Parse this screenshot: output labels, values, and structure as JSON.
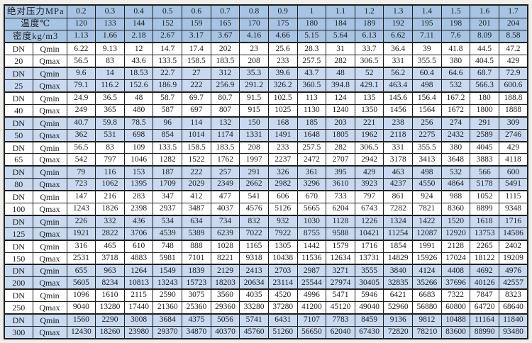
{
  "colors": {
    "header_bg": "#a8c4e4",
    "shaded_row_bg": "#c9d9f0",
    "plain_row_bg": "#ffffff",
    "grid_line": "#1f1f1f",
    "page_margin_bg": "#f0efeb",
    "text": "#1c1c1c"
  },
  "table": {
    "dn_prefix": "DN",
    "qmin_label": "Qmin",
    "qmax_label": "Qmax",
    "header_rows": [
      {
        "id": "pressure",
        "label": "绝对压力MPa",
        "values": [
          "0.2",
          "0.3",
          "0.4",
          "0.5",
          "0.6",
          "0.7",
          "0.8",
          "0.9",
          "1",
          "1.1",
          "1.2",
          "1.3",
          "1.4",
          "1.5",
          "1.6",
          "1.7"
        ]
      },
      {
        "id": "temperature",
        "label": "温度℃",
        "values": [
          "120",
          "133",
          "144",
          "152",
          "159",
          "165",
          "170",
          "175",
          "180",
          "184",
          "189",
          "192",
          "195",
          "198",
          "201",
          "204"
        ]
      },
      {
        "id": "density",
        "label": "密度kg/m3",
        "values": [
          "1.13",
          "1.66",
          "2.18",
          "2.67",
          "3.17",
          "3.67",
          "4.16",
          "4.66",
          "5.15",
          "5.64",
          "6.13",
          "6.62",
          "7.11",
          "7.6",
          "8.09",
          "8.58"
        ]
      }
    ],
    "groups": [
      {
        "size": "20",
        "shaded": false,
        "qmin": [
          "6.22",
          "9.13",
          "12",
          "14.7",
          "17.4",
          "202",
          "23",
          "25.6",
          "28.3",
          "31",
          "33.7",
          "36.4",
          "39",
          "41.8",
          "44.5",
          "47.2"
        ],
        "qmax": [
          "56.5",
          "83",
          "43.6",
          "133.5",
          "158.5",
          "183.5",
          "208",
          "233",
          "257.5",
          "282",
          "306.5",
          "331",
          "355.5",
          "380",
          "404.5",
          "429"
        ]
      },
      {
        "size": "25",
        "shaded": true,
        "qmin": [
          "9.6",
          "14",
          "18.53",
          "22.7",
          "27",
          "312",
          "35.3",
          "39.6",
          "43.7",
          "48",
          "52",
          "56.2",
          "60.4",
          "64.6",
          "68.7",
          "72.9"
        ],
        "qmax": [
          "79.1",
          "116.2",
          "152.6",
          "186.9",
          "222",
          "256.9",
          "291.2",
          "326.2",
          "360.5",
          "394.8",
          "429.1",
          "463.4",
          "498",
          "532",
          "566.3",
          "600.6"
        ]
      },
      {
        "size": "40",
        "shaded": false,
        "qmin": [
          "24.9",
          "36.5",
          "48",
          "58.7",
          "69.7",
          "80.7",
          "91.5",
          "102.5",
          "113",
          "124",
          "135",
          "145.6",
          "156.4",
          "167.2",
          "180",
          "188.8"
        ],
        "qmax": [
          "249",
          "365",
          "480",
          "587",
          "697",
          "807",
          "915",
          "1025",
          "1130",
          "1240",
          "1350",
          "1456",
          "1564",
          "1672",
          "1800",
          "1888"
        ]
      },
      {
        "size": "50",
        "shaded": true,
        "qmin": [
          "40.7",
          "59.8",
          "78.5",
          "96",
          "114",
          "132",
          "150",
          "168",
          "185",
          "203",
          "221",
          "238",
          "256",
          "274",
          "291",
          "309"
        ],
        "qmax": [
          "362",
          "531",
          "698",
          "854",
          "1014",
          "1174",
          "1331",
          "1491",
          "1648",
          "1805",
          "1962",
          "2118",
          "2275",
          "2432",
          "2589",
          "2746"
        ]
      },
      {
        "size": "65",
        "shaded": false,
        "qmin": [
          "56.5",
          "83",
          "109",
          "133.5",
          "158.5",
          "183.5",
          "208",
          "233",
          "257.5",
          "282",
          "306.5",
          "331",
          "355.5",
          "380",
          "4045",
          "429"
        ],
        "qmax": [
          "542",
          "797",
          "1046",
          "1282",
          "1522",
          "1762",
          "1997",
          "2237",
          "2472",
          "2707",
          "2942",
          "3178",
          "3413",
          "3648",
          "3883",
          "4118"
        ]
      },
      {
        "size": "80",
        "shaded": true,
        "qmin": [
          "79",
          "116",
          "153",
          "187",
          "222",
          "257",
          "291",
          "326",
          "361",
          "395",
          "429",
          "463",
          "498",
          "532",
          "566",
          "600"
        ],
        "qmax": [
          "723",
          "1062",
          "1395",
          "1709",
          "2029",
          "2349",
          "2662",
          "2982",
          "3296",
          "3610",
          "3923",
          "4237",
          "4550",
          "4864",
          "5178",
          "5491"
        ]
      },
      {
        "size": "100",
        "shaded": false,
        "qmin": [
          "147",
          "216",
          "283",
          "347",
          "412",
          "477",
          "541",
          "606",
          "670",
          "733",
          "797",
          "861",
          "924",
          "988",
          "1052",
          "1115"
        ],
        "qmax": [
          "1243",
          "1826",
          "2398",
          "2937",
          "3487",
          "4037",
          "4576",
          "5126",
          "5665",
          "6204",
          "6743",
          "7282",
          "7821",
          "8360",
          "8899",
          "9348"
        ]
      },
      {
        "size": "125",
        "shaded": true,
        "qmin": [
          "226",
          "332",
          "436",
          "534",
          "634",
          "734",
          "832",
          "932",
          "1030",
          "1128",
          "1226",
          "1324",
          "1422",
          "1520",
          "1618",
          "1716"
        ],
        "qmax": [
          "1921",
          "2822",
          "3706",
          "4539",
          "5389",
          "6239",
          "7022",
          "7922",
          "8755",
          "9588",
          "10421",
          "11254",
          "12087",
          "12920",
          "13753",
          "14586"
        ]
      },
      {
        "size": "150",
        "shaded": false,
        "qmin": [
          "316",
          "465",
          "610",
          "748",
          "888",
          "1028",
          "1165",
          "1305",
          "1442",
          "1579",
          "1716",
          "1854",
          "1991",
          "2128",
          "2265",
          "2402"
        ],
        "qmax": [
          "2531",
          "3718",
          "4883",
          "5981",
          "7101",
          "8221",
          "9318",
          "10438",
          "11536",
          "12634",
          "13731",
          "14829",
          "15926",
          "17024",
          "18122",
          "19209"
        ]
      },
      {
        "size": "200",
        "shaded": true,
        "qmin": [
          "655",
          "963",
          "1264",
          "1549",
          "1839",
          "2129",
          "2413",
          "2703",
          "2987",
          "3271",
          "3555",
          "3840",
          "4124",
          "4408",
          "4692",
          "4976"
        ],
        "qmax": [
          "5605",
          "8234",
          "10813",
          "13243",
          "15723",
          "18203",
          "20634",
          "23114",
          "25544",
          "27974",
          "30405",
          "32835",
          "35266",
          "37696",
          "40126",
          "42557"
        ]
      },
      {
        "size": "250",
        "shaded": false,
        "qmin": [
          "1096",
          "1610",
          "2115",
          "2590",
          "3075",
          "3560",
          "4035",
          "4520",
          "4996",
          "5471",
          "5946",
          "6421",
          "6683",
          "7322",
          "7847",
          "8323"
        ],
        "qmax": [
          "9040",
          "13280",
          "17440",
          "21360",
          "25360",
          "29360",
          "33280",
          "37280",
          "41200",
          "45120",
          "49040",
          "52960",
          "56880",
          "60800",
          "64720",
          "68640"
        ]
      },
      {
        "size": "300",
        "shaded": true,
        "qmin": [
          "1560",
          "2290",
          "3008",
          "3684",
          "4375",
          "5056",
          "5741",
          "6431",
          "7107",
          "7783",
          "8459",
          "9136",
          "9812",
          "10488",
          "11164",
          "11840"
        ],
        "qmax": [
          "12430",
          "18260",
          "23980",
          "29370",
          "34870",
          "40370",
          "45760",
          "51260",
          "56650",
          "62040",
          "67430",
          "72820",
          "78210",
          "83600",
          "88990",
          "93480"
        ]
      }
    ]
  }
}
